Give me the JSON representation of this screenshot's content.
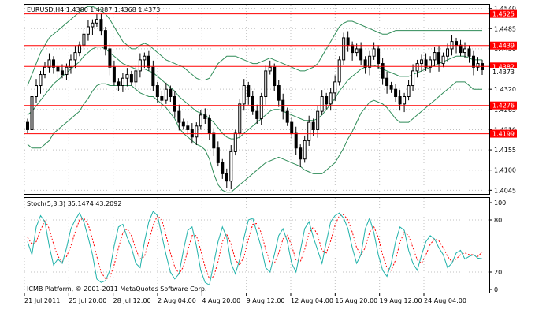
{
  "window": {
    "symbol_header": "EURUSD,H4  1.4386 1.4387 1.4368 1.4373",
    "stoch_header": "Stoch(5,3,3) 35.1474 43.2092",
    "copyright": "ICMB Platform, © 2001-2011 MetaQuotes Software Corp."
  },
  "colors": {
    "background": "#ffffff",
    "grid": "#c0c0c0",
    "frame": "#000000",
    "candles": "#000000",
    "bands": "#2e8b57",
    "level_line": "#ff0000",
    "level_label_bg": "#ff0000",
    "level_label_text": "#ffffff",
    "stoch_main": "#20b2aa",
    "stoch_signal": "#ff0000"
  },
  "price_axis": {
    "ticks": [
      "1.4540",
      "1.4485",
      "1.4430",
      "1.4375",
      "1.4320",
      "1.4265",
      "1.4210",
      "1.4155",
      "1.4100",
      "1.4045"
    ],
    "current_price": "1.4373",
    "levels": [
      "1.4525",
      "1.4439",
      "1.4382",
      "1.4276",
      "1.4199"
    ]
  },
  "stoch_axis": {
    "ticks": [
      "100",
      "80",
      "20",
      "0"
    ]
  },
  "time_axis": {
    "labels": [
      "21 Jul 2011",
      "25 Jul 20:00",
      "28 Jul 12:00",
      "2 Aug 04:00",
      "4 Aug 20:00",
      "9 Aug 12:00",
      "12 Aug 04:00",
      "16 Aug 20:00",
      "19 Aug 12:00",
      "24 Aug 04:00"
    ]
  },
  "chart_data": {
    "type": "candlestick",
    "symbol": "EURUSD",
    "timeframe": "H4",
    "last_bar": {
      "open": 1.4386,
      "high": 1.4387,
      "low": 1.4368,
      "close": 1.4373
    },
    "ylim": [
      1.4035,
      1.455
    ],
    "closes": [
      1.421,
      1.43,
      1.433,
      1.436,
      1.438,
      1.44,
      1.438,
      1.437,
      1.436,
      1.438,
      1.44,
      1.442,
      1.444,
      1.447,
      1.449,
      1.45,
      1.451,
      1.448,
      1.443,
      1.438,
      1.434,
      1.433,
      1.435,
      1.436,
      1.434,
      1.437,
      1.44,
      1.441,
      1.438,
      1.433,
      1.43,
      1.429,
      1.432,
      1.43,
      1.426,
      1.423,
      1.422,
      1.421,
      1.419,
      1.422,
      1.425,
      1.424,
      1.42,
      1.416,
      1.412,
      1.409,
      1.407,
      1.415,
      1.42,
      1.428,
      1.433,
      1.43,
      1.426,
      1.424,
      1.43,
      1.437,
      1.438,
      1.433,
      1.429,
      1.426,
      1.423,
      1.42,
      1.416,
      1.413,
      1.418,
      1.423,
      1.421,
      1.426,
      1.43,
      1.428,
      1.431,
      1.434,
      1.44,
      1.446,
      1.444,
      1.442,
      1.443,
      1.44,
      1.438,
      1.441,
      1.443,
      1.439,
      1.435,
      1.433,
      1.432,
      1.43,
      1.428,
      1.43,
      1.433,
      1.437,
      1.439,
      1.44,
      1.438,
      1.44,
      1.442,
      1.439,
      1.441,
      1.443,
      1.445,
      1.444,
      1.442,
      1.443,
      1.441,
      1.438,
      1.439,
      1.4373
    ],
    "bollinger_bands": {
      "upper": [
        1.433,
        1.436,
        1.439,
        1.442,
        1.444,
        1.446,
        1.447,
        1.448,
        1.449,
        1.45,
        1.451,
        1.452,
        1.453,
        1.454,
        1.4545,
        1.4545,
        1.454,
        1.4535,
        1.4525,
        1.451,
        1.449,
        1.447,
        1.445,
        1.444,
        1.443,
        1.443,
        1.444,
        1.4445,
        1.444,
        1.443,
        1.442,
        1.441,
        1.44,
        1.4395,
        1.439,
        1.4385,
        1.438,
        1.437,
        1.436,
        1.435,
        1.4345,
        1.4345,
        1.435,
        1.437,
        1.439,
        1.44,
        1.441,
        1.441,
        1.441,
        1.4405,
        1.44,
        1.4395,
        1.439,
        1.439,
        1.4395,
        1.44,
        1.4405,
        1.44,
        1.4395,
        1.439,
        1.4385,
        1.438,
        1.4375,
        1.437,
        1.437,
        1.4375,
        1.438,
        1.439,
        1.441,
        1.443,
        1.445,
        1.447,
        1.449,
        1.45,
        1.4505,
        1.4505,
        1.45,
        1.4495,
        1.449,
        1.4485,
        1.448,
        1.4475,
        1.447,
        1.447,
        1.4475,
        1.448,
        1.448,
        1.448,
        1.448,
        1.448,
        1.448,
        1.448,
        1.448,
        1.448,
        1.448,
        1.448,
        1.448,
        1.448,
        1.448,
        1.448,
        1.448,
        1.448,
        1.448,
        1.448,
        1.448,
        1.448
      ],
      "middle": [
        1.425,
        1.426,
        1.4275,
        1.429,
        1.4305,
        1.432,
        1.4335,
        1.4345,
        1.4355,
        1.4365,
        1.4375,
        1.4385,
        1.4395,
        1.441,
        1.442,
        1.443,
        1.4435,
        1.4435,
        1.443,
        1.442,
        1.441,
        1.44,
        1.439,
        1.4385,
        1.438,
        1.4375,
        1.4375,
        1.4375,
        1.437,
        1.4365,
        1.4355,
        1.4345,
        1.4335,
        1.4325,
        1.4315,
        1.43,
        1.429,
        1.428,
        1.427,
        1.426,
        1.4255,
        1.425,
        1.424,
        1.423,
        1.4215,
        1.42,
        1.419,
        1.4185,
        1.4185,
        1.419,
        1.42,
        1.421,
        1.422,
        1.423,
        1.424,
        1.425,
        1.426,
        1.4265,
        1.4265,
        1.426,
        1.4255,
        1.425,
        1.4245,
        1.424,
        1.4235,
        1.4235,
        1.4235,
        1.424,
        1.425,
        1.4265,
        1.428,
        1.4295,
        1.4315,
        1.433,
        1.4345,
        1.4355,
        1.4365,
        1.4375,
        1.438,
        1.4385,
        1.4385,
        1.438,
        1.4375,
        1.437,
        1.4365,
        1.436,
        1.4355,
        1.4355,
        1.4355,
        1.436,
        1.4365,
        1.437,
        1.4375,
        1.438,
        1.4385,
        1.439,
        1.4395,
        1.44,
        1.4405,
        1.441,
        1.441,
        1.441,
        1.4405,
        1.44,
        1.44,
        1.44
      ],
      "lower": [
        1.417,
        1.416,
        1.416,
        1.416,
        1.417,
        1.418,
        1.42,
        1.421,
        1.422,
        1.423,
        1.424,
        1.425,
        1.426,
        1.428,
        1.4295,
        1.4315,
        1.433,
        1.4335,
        1.4335,
        1.433,
        1.433,
        1.433,
        1.433,
        1.433,
        1.433,
        1.432,
        1.431,
        1.4305,
        1.43,
        1.43,
        1.429,
        1.428,
        1.427,
        1.4255,
        1.424,
        1.4215,
        1.42,
        1.419,
        1.418,
        1.417,
        1.4165,
        1.4155,
        1.413,
        1.409,
        1.406,
        1.4045,
        1.404,
        1.404,
        1.405,
        1.406,
        1.407,
        1.408,
        1.409,
        1.41,
        1.411,
        1.412,
        1.4125,
        1.413,
        1.4135,
        1.413,
        1.4125,
        1.412,
        1.4115,
        1.411,
        1.41,
        1.4095,
        1.409,
        1.409,
        1.409,
        1.41,
        1.411,
        1.412,
        1.414,
        1.416,
        1.4185,
        1.4205,
        1.423,
        1.4255,
        1.427,
        1.4285,
        1.429,
        1.4285,
        1.428,
        1.427,
        1.4255,
        1.424,
        1.423,
        1.423,
        1.423,
        1.424,
        1.425,
        1.426,
        1.427,
        1.428,
        1.429,
        1.43,
        1.431,
        1.432,
        1.433,
        1.434,
        1.434,
        1.434,
        1.433,
        1.432,
        1.432,
        1.432
      ]
    },
    "stochastic": {
      "params": "5,3,3",
      "main_last": 35.1474,
      "signal_last": 43.2092,
      "ylim": [
        0,
        100
      ],
      "levels": [
        20,
        80
      ],
      "main": [
        55,
        40,
        72,
        85,
        78,
        50,
        28,
        35,
        30,
        48,
        70,
        80,
        88,
        78,
        60,
        40,
        12,
        8,
        10,
        22,
        50,
        72,
        75,
        60,
        48,
        30,
        25,
        55,
        78,
        90,
        85,
        62,
        40,
        20,
        12,
        18,
        45,
        68,
        72,
        50,
        22,
        8,
        5,
        30,
        55,
        72,
        60,
        30,
        18,
        35,
        60,
        80,
        82,
        65,
        48,
        25,
        20,
        40,
        62,
        70,
        55,
        30,
        20,
        45,
        70,
        78,
        60,
        45,
        30,
        55,
        78,
        85,
        88,
        82,
        70,
        48,
        30,
        40,
        70,
        82,
        65,
        40,
        22,
        15,
        30,
        55,
        72,
        68,
        45,
        30,
        22,
        40,
        55,
        62,
        58,
        48,
        40,
        25,
        30,
        42,
        45,
        35,
        38,
        40,
        36,
        35.1474
      ],
      "signal": [
        60,
        52,
        55,
        68,
        80,
        70,
        52,
        38,
        32,
        38,
        50,
        66,
        80,
        82,
        75,
        58,
        38,
        20,
        12,
        14,
        28,
        48,
        65,
        70,
        62,
        46,
        35,
        38,
        55,
        74,
        85,
        80,
        62,
        42,
        26,
        18,
        26,
        45,
        62,
        62,
        45,
        26,
        12,
        15,
        32,
        55,
        64,
        52,
        34,
        28,
        38,
        58,
        75,
        76,
        65,
        46,
        32,
        30,
        42,
        58,
        63,
        50,
        34,
        32,
        46,
        65,
        72,
        62,
        45,
        42,
        56,
        74,
        85,
        86,
        80,
        66,
        48,
        40,
        48,
        66,
        72,
        60,
        40,
        25,
        22,
        34,
        54,
        66,
        62,
        48,
        34,
        30,
        40,
        52,
        58,
        56,
        48,
        38,
        32,
        35,
        40,
        42,
        40,
        40,
        38,
        43.2092
      ]
    }
  }
}
